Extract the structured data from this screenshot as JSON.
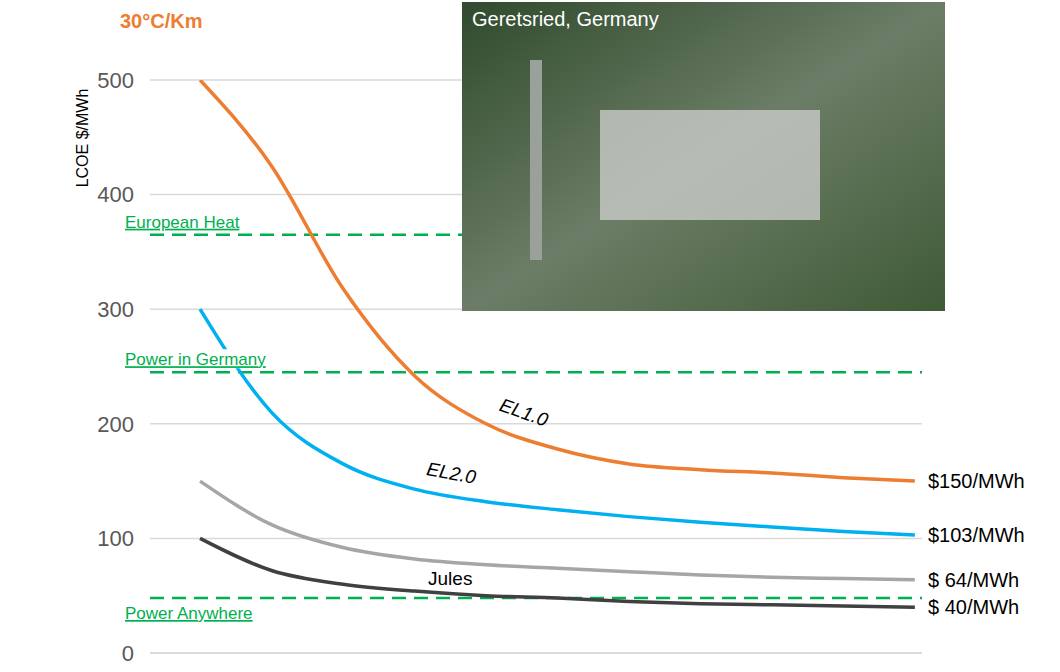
{
  "chart_data": {
    "type": "line",
    "title": "30°C/Km",
    "y_label": "LCOE $/MWh",
    "x": [
      0,
      1,
      2,
      3,
      4,
      5,
      6,
      7,
      8,
      9,
      10
    ],
    "xlim": [
      -0.7,
      10.1
    ],
    "ylim": [
      0,
      500
    ],
    "yticks": [
      0,
      100,
      200,
      300,
      400,
      500
    ],
    "grid": true,
    "tick_labels": "y",
    "series": [
      {
        "name": "EL1.0",
        "color": "#ed7d31",
        "values": [
          500,
          425,
          318,
          242,
          200,
          178,
          165,
          160,
          157,
          153,
          150
        ],
        "end_label": "$150/MWh"
      },
      {
        "name": "EL2.0",
        "color": "#00b0f0",
        "values": [
          300,
          210,
          165,
          143,
          132,
          125,
          119,
          114,
          110,
          106,
          103
        ],
        "end_label": "$103/MWh"
      },
      {
        "color": "#a6a6a6",
        "values": [
          150,
          112,
          92,
          82,
          77,
          74,
          71,
          68,
          66,
          65,
          64
        ],
        "end_label": "$ 64/MWh"
      },
      {
        "name": "Jules",
        "color": "#404040",
        "values": [
          100,
          72,
          60,
          54,
          50,
          48,
          45,
          43,
          42,
          41,
          40
        ],
        "end_label": "$ 40/MWh"
      }
    ],
    "reference_lines": [
      {
        "y": 365,
        "label": "European Heat",
        "color": "#00b050",
        "line_style": "dashed"
      },
      {
        "y": 245,
        "label": "Power in Germany",
        "color": "#00b050",
        "line_style": "dashed"
      },
      {
        "y": 48,
        "label": "Power Anywhere",
        "color": "#00b050",
        "line_style": "dashed"
      }
    ],
    "image_caption": "Geretsried, Germany"
  }
}
